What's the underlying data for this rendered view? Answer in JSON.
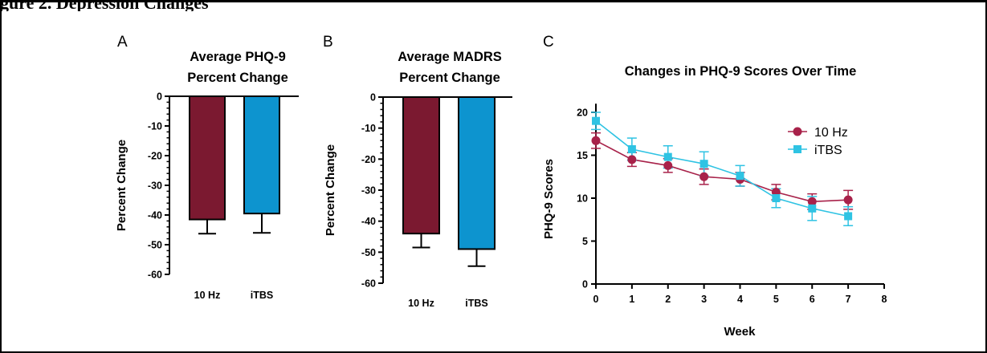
{
  "page": {
    "header_fragment": "gure 2.   Depression Changes"
  },
  "colors": {
    "10hz": "#7b1930",
    "itbs": "#0d94cf",
    "line_10hz": "#a8224a",
    "line_itbs": "#2fc3e3"
  },
  "chart_data": [
    {
      "panel": "A",
      "type": "bar",
      "title_lines": [
        "Average PHQ-9",
        "Percent Change"
      ],
      "ylabel": "Percent Change",
      "xlabel": "",
      "categories": [
        "10 Hz",
        "iTBS"
      ],
      "values": [
        -41.5,
        -39.5
      ],
      "error": [
        4.8,
        6.5
      ],
      "ylim": [
        -60,
        0
      ],
      "yticks": [
        0,
        -10,
        -20,
        -30,
        -40,
        -50,
        -60
      ],
      "ytick_labels": [
        "0",
        "-10",
        "-20",
        "-30",
        "-40",
        "-50",
        "-60"
      ],
      "bar_colors": [
        "#7b1930",
        "#0d94cf"
      ]
    },
    {
      "panel": "B",
      "type": "bar",
      "title_lines": [
        "Average MADRS",
        "Percent Change"
      ],
      "ylabel": "Percent Change",
      "xlabel": "",
      "categories": [
        "10 Hz",
        "iTBS"
      ],
      "values": [
        -44,
        -49
      ],
      "error": [
        4.5,
        5.5
      ],
      "ylim": [
        -60,
        0
      ],
      "yticks": [
        0,
        -10,
        -20,
        -30,
        -40,
        -50,
        -60
      ],
      "ytick_labels": [
        "0",
        "-10",
        "-20",
        "-30",
        "-40",
        "-50",
        "-60"
      ],
      "bar_colors": [
        "#7b1930",
        "#0d94cf"
      ]
    },
    {
      "panel": "C",
      "type": "line",
      "title": "Changes in PHQ-9 Scores Over Time",
      "xlabel": "Week",
      "ylabel": "PHQ-9 Scores",
      "xlim": [
        0,
        8
      ],
      "ylim": [
        0,
        21
      ],
      "xticks": [
        0,
        1,
        2,
        3,
        4,
        5,
        6,
        7,
        8
      ],
      "xtick_labels": [
        "0",
        "1",
        "2",
        "3",
        "4",
        "5",
        "6",
        "7",
        "8"
      ],
      "yticks": [
        0,
        5,
        10,
        15,
        20
      ],
      "ytick_labels": [
        "0",
        "5",
        "10",
        "15",
        "20"
      ],
      "legend_position": "top-right",
      "series": [
        {
          "name": "10 Hz",
          "marker": "circle",
          "x": [
            0,
            1,
            2,
            3,
            4,
            5,
            6,
            7
          ],
          "y": [
            16.7,
            14.5,
            13.8,
            12.5,
            12.2,
            10.7,
            9.6,
            9.8
          ],
          "error": [
            0.9,
            0.8,
            0.8,
            0.9,
            0.8,
            0.9,
            0.9,
            1.1
          ],
          "color": "#a8224a"
        },
        {
          "name": "iTBS",
          "marker": "square",
          "x": [
            0,
            1,
            2,
            3,
            4,
            5,
            6,
            7
          ],
          "y": [
            19.0,
            15.7,
            14.8,
            14.0,
            12.6,
            10.0,
            8.8,
            7.9
          ],
          "error": [
            1.0,
            1.3,
            1.3,
            1.4,
            1.2,
            1.1,
            1.4,
            1.1
          ],
          "color": "#2fc3e3"
        }
      ]
    }
  ]
}
